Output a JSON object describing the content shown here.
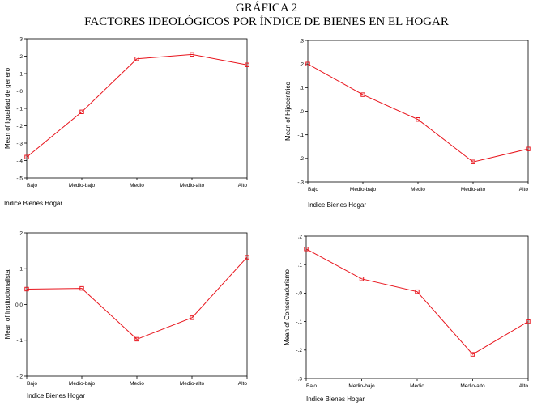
{
  "heading": {
    "line1": "GRÁFICA 2",
    "line2": "FACTORES IDEOLÓGICOS POR ÍNDICE DE BIENES EN EL HOGAR"
  },
  "colors": {
    "line": "#e8141c",
    "axis": "#000000"
  },
  "chart_data": [
    {
      "type": "line",
      "categories": [
        "Bajo",
        "Medio-bajo",
        "Medio",
        "Medio-alto",
        "Alto"
      ],
      "series": [
        {
          "values": [
            -0.38,
            -0.12,
            0.185,
            0.21,
            0.15
          ]
        }
      ],
      "xlabel": "Indice Bienes Hogar",
      "ylabel": "Mean of Igualdad de genero",
      "ylim": [
        -0.5,
        0.3
      ],
      "yticks": [
        0.3,
        0.2,
        0.1,
        0.0,
        -0.1,
        -0.2,
        -0.3,
        -0.4,
        -0.5
      ],
      "ytick_labels": [
        ".3",
        ".2",
        ".1",
        "-.0",
        "-.1",
        "-.2",
        "-.3",
        "-.4",
        "-.5"
      ],
      "grid": false
    },
    {
      "type": "line",
      "categories": [
        "Bajo",
        "Medio-bajo",
        "Medio",
        "Medio-alto",
        "Alto"
      ],
      "series": [
        {
          "values": [
            0.2,
            0.07,
            -0.035,
            -0.215,
            -0.16
          ]
        }
      ],
      "xlabel": "Indice Bienes Hogar",
      "ylabel": "Mean of Hijocéntrico",
      "ylim": [
        -0.3,
        0.3
      ],
      "yticks": [
        0.3,
        0.2,
        0.1,
        0.0,
        -0.1,
        -0.2,
        -0.3
      ],
      "ytick_labels": [
        ".3",
        ".2",
        ".1",
        "-.0",
        "-.1",
        "-.2",
        "-.3"
      ],
      "grid": false
    },
    {
      "type": "line",
      "categories": [
        "Bajo",
        "Medio-bajo",
        "Medio",
        "Medio-alto",
        "Alto"
      ],
      "series": [
        {
          "values": [
            0.043,
            0.045,
            -0.097,
            -0.037,
            0.132
          ]
        }
      ],
      "xlabel": "Indice Bienes Hogar",
      "ylabel": "Mean of Institucionalista",
      "ylim": [
        -0.2,
        0.2
      ],
      "yticks": [
        0.2,
        0.1,
        0.0,
        -0.1,
        -0.2
      ],
      "ytick_labels": [
        ".2",
        ".1",
        "0.0",
        "-.1",
        "-.2"
      ],
      "grid": false
    },
    {
      "type": "line",
      "categories": [
        "Bajo",
        "Medio-bajo",
        "Medio",
        "Medio-alto",
        "Alto"
      ],
      "series": [
        {
          "values": [
            0.155,
            0.05,
            0.005,
            -0.215,
            -0.1
          ]
        }
      ],
      "xlabel": "Indice Bienes Hogar",
      "ylabel": "Mean of Conservadurismo",
      "ylim": [
        -0.3,
        0.2
      ],
      "yticks": [
        0.2,
        0.1,
        0.0,
        -0.1,
        -0.2,
        -0.3
      ],
      "ytick_labels": [
        ".2",
        ".1",
        "-.0",
        "-.1",
        "-.2",
        "-.3"
      ],
      "grid": false
    }
  ]
}
